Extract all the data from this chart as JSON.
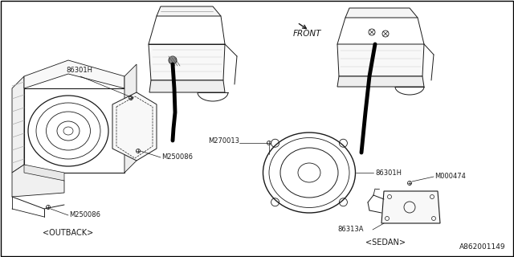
{
  "bg_color": "#ffffff",
  "lc": "#1a1a1a",
  "labels": {
    "86301H_left": "86301H",
    "M250086_top": "M250086",
    "M250086_bot": "M250086",
    "outback": "<OUTBACK>",
    "front": "FRONT",
    "M270013": "M270013",
    "86301H_right": "86301H",
    "M000474": "M000474",
    "86313A": "86313A",
    "sedan": "<SEDAN>",
    "diag_num": "A862001149"
  },
  "fs": 6.0,
  "fs2": 7.0,
  "fs3": 6.5
}
